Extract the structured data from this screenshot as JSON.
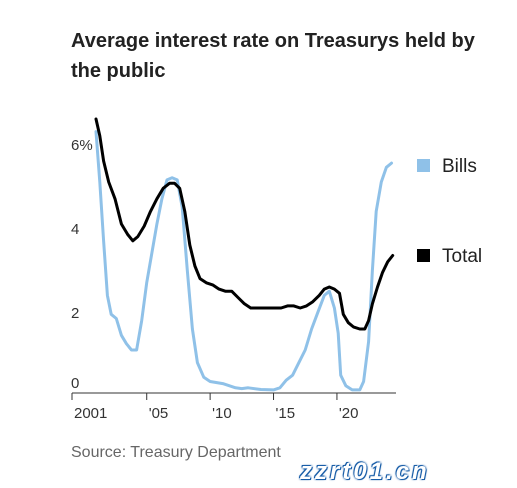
{
  "title": "Average interest rate on Treasurys held by the public",
  "source": "Source: Treasury Department",
  "watermark": "zzrt01.cn",
  "chart_data": {
    "type": "line",
    "title": "Average interest rate on Treasurys held by the public",
    "xlabel": "",
    "ylabel": "",
    "xlim": [
      2001,
      2024.5
    ],
    "ylim": [
      0,
      6.5
    ],
    "y_ticks": [
      {
        "value": 6,
        "label": "6%"
      },
      {
        "value": 4,
        "label": "4"
      },
      {
        "value": 2,
        "label": "2"
      },
      {
        "value": 0,
        "label": "0"
      }
    ],
    "x_ticks": [
      {
        "value": 2001,
        "label": "2001"
      },
      {
        "value": 2005,
        "label": "'05"
      },
      {
        "value": 2010,
        "label": "'10"
      },
      {
        "value": 2015,
        "label": "'15"
      },
      {
        "value": 2020,
        "label": "'20"
      }
    ],
    "grid": false,
    "legend_position": "right",
    "series": [
      {
        "name": "Bills",
        "color": "#8fc1e8",
        "points": [
          [
            2001.0,
            6.2
          ],
          [
            2001.3,
            5.0
          ],
          [
            2001.6,
            3.6
          ],
          [
            2001.9,
            2.3
          ],
          [
            2002.2,
            1.85
          ],
          [
            2002.6,
            1.75
          ],
          [
            2003.0,
            1.35
          ],
          [
            2003.4,
            1.15
          ],
          [
            2003.8,
            1.0
          ],
          [
            2004.2,
            1.0
          ],
          [
            2004.6,
            1.7
          ],
          [
            2005.0,
            2.6
          ],
          [
            2005.4,
            3.3
          ],
          [
            2005.8,
            4.0
          ],
          [
            2006.2,
            4.6
          ],
          [
            2006.6,
            5.05
          ],
          [
            2007.0,
            5.1
          ],
          [
            2007.4,
            5.05
          ],
          [
            2007.8,
            4.4
          ],
          [
            2008.2,
            2.9
          ],
          [
            2008.6,
            1.5
          ],
          [
            2009.0,
            0.7
          ],
          [
            2009.5,
            0.35
          ],
          [
            2010.0,
            0.25
          ],
          [
            2011.0,
            0.2
          ],
          [
            2012.0,
            0.1
          ],
          [
            2012.5,
            0.08
          ],
          [
            2013.0,
            0.1
          ],
          [
            2014.0,
            0.06
          ],
          [
            2015.0,
            0.05
          ],
          [
            2015.5,
            0.1
          ],
          [
            2016.0,
            0.28
          ],
          [
            2016.5,
            0.4
          ],
          [
            2017.0,
            0.7
          ],
          [
            2017.5,
            1.0
          ],
          [
            2018.0,
            1.5
          ],
          [
            2018.5,
            1.9
          ],
          [
            2019.0,
            2.3
          ],
          [
            2019.4,
            2.4
          ],
          [
            2019.8,
            2.0
          ],
          [
            2020.1,
            1.4
          ],
          [
            2020.3,
            0.4
          ],
          [
            2020.7,
            0.15
          ],
          [
            2021.2,
            0.05
          ],
          [
            2021.8,
            0.05
          ],
          [
            2022.1,
            0.25
          ],
          [
            2022.5,
            1.2
          ],
          [
            2022.8,
            2.9
          ],
          [
            2023.1,
            4.3
          ],
          [
            2023.5,
            5.0
          ],
          [
            2023.9,
            5.35
          ],
          [
            2024.3,
            5.45
          ]
        ]
      },
      {
        "name": "Total",
        "color": "#000000",
        "points": [
          [
            2001.0,
            6.5
          ],
          [
            2001.3,
            6.1
          ],
          [
            2001.6,
            5.5
          ],
          [
            2002.0,
            5.0
          ],
          [
            2002.5,
            4.6
          ],
          [
            2003.0,
            4.0
          ],
          [
            2003.5,
            3.75
          ],
          [
            2003.9,
            3.6
          ],
          [
            2004.3,
            3.7
          ],
          [
            2004.8,
            3.95
          ],
          [
            2005.3,
            4.3
          ],
          [
            2005.8,
            4.6
          ],
          [
            2006.3,
            4.85
          ],
          [
            2006.8,
            4.97
          ],
          [
            2007.2,
            4.97
          ],
          [
            2007.6,
            4.85
          ],
          [
            2008.0,
            4.3
          ],
          [
            2008.4,
            3.5
          ],
          [
            2008.8,
            3.0
          ],
          [
            2009.2,
            2.7
          ],
          [
            2009.7,
            2.6
          ],
          [
            2010.2,
            2.55
          ],
          [
            2010.7,
            2.45
          ],
          [
            2011.2,
            2.4
          ],
          [
            2011.7,
            2.4
          ],
          [
            2012.2,
            2.25
          ],
          [
            2012.7,
            2.1
          ],
          [
            2013.2,
            2.0
          ],
          [
            2014.0,
            2.0
          ],
          [
            2015.0,
            2.0
          ],
          [
            2015.6,
            2.0
          ],
          [
            2016.1,
            2.05
          ],
          [
            2016.6,
            2.05
          ],
          [
            2017.1,
            2.0
          ],
          [
            2017.6,
            2.05
          ],
          [
            2018.1,
            2.15
          ],
          [
            2018.6,
            2.3
          ],
          [
            2019.0,
            2.45
          ],
          [
            2019.4,
            2.5
          ],
          [
            2019.8,
            2.45
          ],
          [
            2020.2,
            2.35
          ],
          [
            2020.5,
            1.85
          ],
          [
            2020.9,
            1.65
          ],
          [
            2021.3,
            1.55
          ],
          [
            2021.8,
            1.5
          ],
          [
            2022.2,
            1.5
          ],
          [
            2022.5,
            1.7
          ],
          [
            2022.8,
            2.1
          ],
          [
            2023.2,
            2.5
          ],
          [
            2023.6,
            2.85
          ],
          [
            2024.0,
            3.1
          ],
          [
            2024.4,
            3.25
          ]
        ]
      }
    ]
  }
}
